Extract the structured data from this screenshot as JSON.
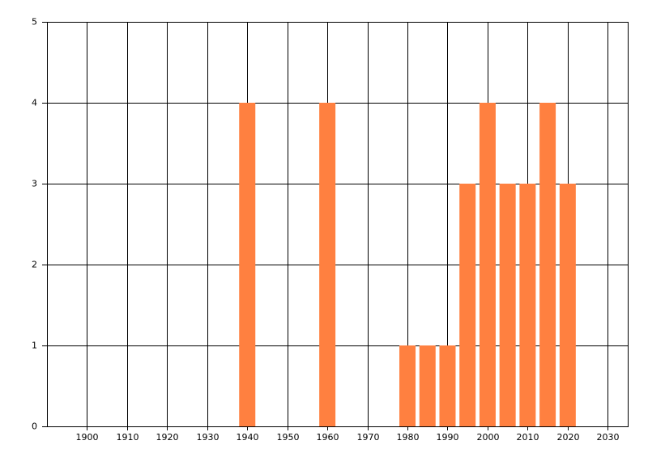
{
  "chart_data": {
    "type": "bar",
    "x": [
      1940,
      1960,
      1980,
      1985,
      1990,
      1995,
      2000,
      2005,
      2010,
      2015,
      2020
    ],
    "values": [
      4,
      4,
      1,
      1,
      1,
      3,
      4,
      3,
      3,
      4,
      3
    ],
    "color": "#ff8040",
    "xlim": [
      1890,
      2035
    ],
    "xticks": [
      1900,
      1910,
      1920,
      1930,
      1940,
      1950,
      1960,
      1970,
      1980,
      1990,
      2000,
      2010,
      2020,
      2030
    ],
    "ylim": [
      0,
      5
    ],
    "yticks": [
      0,
      1,
      2,
      3,
      4,
      5
    ],
    "grid": true
  }
}
